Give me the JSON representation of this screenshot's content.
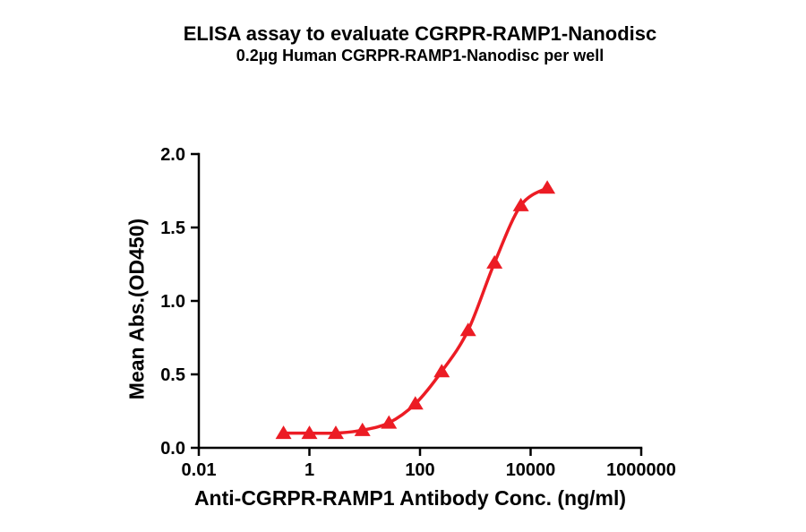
{
  "chart_data": {
    "type": "scatter",
    "title": "ELISA assay to evaluate CGRPR-RAMP1-Nanodisc",
    "subtitle": "0.2µg Human CGRPR-RAMP1-Nanodisc per well",
    "xlabel": "Anti-CGRPR-RAMP1 Antibody Conc. (ng/ml)",
    "ylabel": "Mean Abs.(OD450)",
    "x_scale": "log10",
    "xlim": [
      0.01,
      1000000
    ],
    "ylim": [
      0.0,
      2.0
    ],
    "x_tick_values": [
      0.01,
      1,
      100,
      10000,
      1000000
    ],
    "x_tick_labels": [
      "0.01",
      "1",
      "100",
      "10000",
      "1000000"
    ],
    "y_tick_values": [
      0.0,
      0.5,
      1.0,
      1.5,
      2.0
    ],
    "y_tick_labels": [
      "0.0",
      "0.5",
      "1.0",
      "1.5",
      "2.0"
    ],
    "x": [
      0.34,
      1.0,
      3.0,
      9.1,
      27.4,
      82.3,
      247,
      741,
      2222,
      6667,
      20000
    ],
    "y": [
      0.1,
      0.1,
      0.1,
      0.12,
      0.17,
      0.3,
      0.52,
      0.8,
      1.26,
      1.65,
      1.77
    ],
    "marker": "triangle-up",
    "curve": "sigmoid-fit",
    "series_color": "#EC1C24",
    "axis_color": "#000000",
    "background_color": "#FFFFFF",
    "grid": false,
    "legend": "none"
  }
}
